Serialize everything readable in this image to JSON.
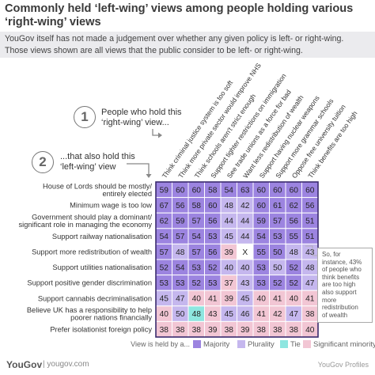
{
  "title": "Commonly held ‘left-wing’ views among people holding various ‘right-wing’ views",
  "title_lines": [
    "Commonly held ‘left-wing’ views among people holding various",
    "‘right-wing’ views"
  ],
  "subtitle_lines": [
    "YouGov itself has not made a judgement over whether any given policy is left- or right-wing.",
    "Those views shown are all views that the public consider to be left- or right-wing."
  ],
  "step1": {
    "number": "1",
    "lines": [
      "People who hold this",
      "‘right-wing’ view..."
    ]
  },
  "step2": {
    "number": "2",
    "lines": [
      "...that also hold this",
      "‘left-wing’ view"
    ]
  },
  "note_lines": [
    "So, for",
    "instance, 43%",
    "of people who",
    "think benefits",
    "are too high",
    "also support",
    "more",
    "redistribution",
    "of wealth"
  ],
  "legend": {
    "title": "View is held by a...",
    "items": [
      {
        "label": "Majority",
        "color": "#9c84e0"
      },
      {
        "label": "Plurality",
        "color": "#c5b7ee"
      },
      {
        "label": "Tie",
        "color": "#8ee6e0"
      },
      {
        "label": "Significant minority",
        "color": "#f2c6d4"
      }
    ]
  },
  "footer": {
    "brand": "YouGov",
    "domain": "| yougov.com",
    "profiles": "YouGov Profiles"
  },
  "colors": {
    "majority": "#9c84e0",
    "plurality": "#c5b7ee",
    "tie": "#8ee6e0",
    "minority": "#f2c6d4",
    "diagonal": "#ffffff"
  },
  "chart_data": {
    "type": "heatmap",
    "columns": [
      "Think criminal justice system is too soft",
      "Think more private sector would improve NHS",
      "Think schools aren't strict enough",
      "Support tighter restrictions on immigration",
      "See trade unions as a force for bad",
      "Want less redistribution of wealth",
      "Support having nuclear weapons",
      "Support more grammar schools",
      "Oppose free university tuition",
      "Think benefits are too high"
    ],
    "rows": [
      [
        "House of Lords should be mostly/",
        "entirely elected"
      ],
      [
        "Minimum wage is too low"
      ],
      [
        "Government should play a dominant/",
        "significant role in managing the economy"
      ],
      [
        "Support railway nationalisation"
      ],
      [
        "Support more redistribution of wealth"
      ],
      [
        "Support utilities nationalisation"
      ],
      [
        "Support positive gender discrimination"
      ],
      [
        "Support cannabis decriminalisation"
      ],
      [
        "Believe UK has a responsibility to help",
        "poorer nations financially"
      ],
      [
        "Prefer isolationist foreign policy"
      ]
    ],
    "values": [
      [
        "59",
        "60",
        "60",
        "58",
        "54",
        "63",
        "60",
        "60",
        "60",
        "60"
      ],
      [
        "67",
        "56",
        "58",
        "60",
        "48",
        "42",
        "60",
        "61",
        "62",
        "56"
      ],
      [
        "62",
        "59",
        "57",
        "56",
        "44",
        "44",
        "59",
        "57",
        "56",
        "51"
      ],
      [
        "54",
        "57",
        "54",
        "53",
        "45",
        "44",
        "54",
        "53",
        "55",
        "51"
      ],
      [
        "57",
        "48",
        "57",
        "56",
        "39",
        "X",
        "55",
        "50",
        "48",
        "43"
      ],
      [
        "52",
        "54",
        "53",
        "52",
        "40",
        "40",
        "53",
        "50",
        "52",
        "48"
      ],
      [
        "53",
        "53",
        "52",
        "53",
        "37",
        "43",
        "53",
        "52",
        "52",
        "47"
      ],
      [
        "45",
        "47",
        "40",
        "41",
        "39",
        "45",
        "40",
        "41",
        "40",
        "41"
      ],
      [
        "40",
        "50",
        "48",
        "43",
        "45",
        "46",
        "41",
        "42",
        "47",
        "38"
      ],
      [
        "38",
        "38",
        "38",
        "39",
        "38",
        "39",
        "38",
        "38",
        "38",
        "40"
      ]
    ],
    "categories": [
      [
        "M",
        "M",
        "M",
        "M",
        "M",
        "M",
        "M",
        "M",
        "M",
        "M"
      ],
      [
        "M",
        "M",
        "M",
        "M",
        "P",
        "P",
        "M",
        "M",
        "M",
        "M"
      ],
      [
        "M",
        "M",
        "M",
        "M",
        "P",
        "P",
        "M",
        "M",
        "M",
        "M"
      ],
      [
        "M",
        "M",
        "M",
        "M",
        "P",
        "P",
        "M",
        "M",
        "M",
        "M"
      ],
      [
        "M",
        "P",
        "M",
        "M",
        "S",
        "X",
        "M",
        "M",
        "P",
        "P"
      ],
      [
        "M",
        "M",
        "M",
        "M",
        "P",
        "P",
        "M",
        "P",
        "M",
        "P"
      ],
      [
        "M",
        "M",
        "M",
        "M",
        "S",
        "P",
        "M",
        "M",
        "M",
        "P"
      ],
      [
        "P",
        "P",
        "S",
        "S",
        "S",
        "P",
        "S",
        "S",
        "S",
        "S"
      ],
      [
        "S",
        "P",
        "T",
        "S",
        "P",
        "P",
        "S",
        "S",
        "P",
        "S"
      ],
      [
        "S",
        "S",
        "S",
        "S",
        "S",
        "S",
        "S",
        "S",
        "S",
        "S"
      ]
    ]
  }
}
